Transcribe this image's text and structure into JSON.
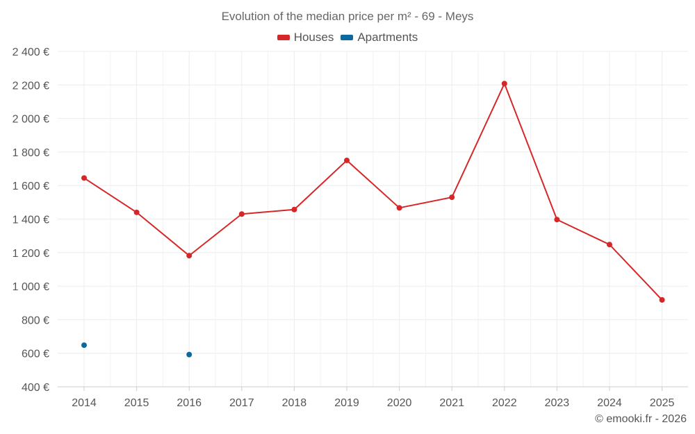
{
  "chart_data": {
    "type": "line",
    "title": "Evolution of the median price per m² - 69 - Meys",
    "categories": [
      "2014",
      "2015",
      "2016",
      "2017",
      "2018",
      "2019",
      "2020",
      "2021",
      "2022",
      "2023",
      "2024",
      "2025"
    ],
    "series": [
      {
        "name": "Houses",
        "color": "#d62728",
        "values": [
          1645,
          1440,
          1182,
          1430,
          1457,
          1750,
          1467,
          1530,
          2208,
          1397,
          1248,
          918
        ]
      },
      {
        "name": "Apartments",
        "color": "#0a6a9e",
        "values": [
          648,
          null,
          592,
          null,
          null,
          null,
          null,
          null,
          null,
          null,
          null,
          null
        ]
      }
    ],
    "ylim": [
      400,
      2400
    ],
    "yticks": [
      400,
      600,
      800,
      1000,
      1200,
      1400,
      1600,
      1800,
      2000,
      2200,
      2400
    ],
    "ytick_labels": [
      "400 €",
      "600 €",
      "800 €",
      "1 000 €",
      "1 200 €",
      "1 400 €",
      "1 600 €",
      "1 800 €",
      "2 000 €",
      "2 200 €",
      "2 400 €"
    ],
    "grid": true,
    "legend_position": "top-center",
    "xlabel": "",
    "ylabel": ""
  },
  "credit": "© emooki.fr - 2026"
}
